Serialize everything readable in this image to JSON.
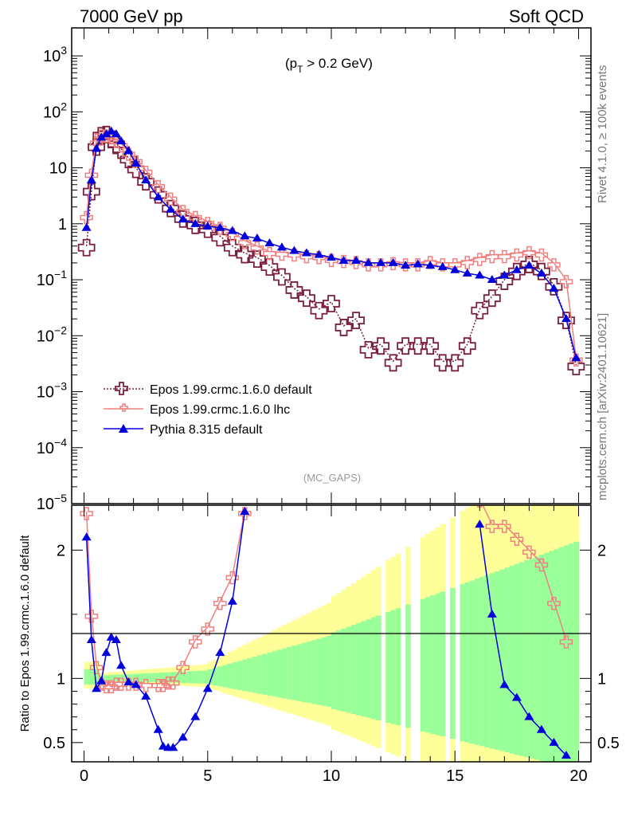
{
  "header": {
    "left": "7000 GeV pp",
    "right": "Soft QCD"
  },
  "side": {
    "rivet": "Rivet 4.1.0, ≥ 100k events",
    "mcplots": "mcplots.cern.ch [arXiv:2401.10621]"
  },
  "chart_data": {
    "type": "line",
    "cut_label": "(p_T > 0.2 GeV)",
    "watermark": "(MC_GAPS)",
    "ylabel_ratio": "Ratio to Epos 1.99.crmc.1.6.0 default",
    "xlim": [
      -0.5,
      20.5
    ],
    "ylim_main_log10": [
      -5,
      3.5
    ],
    "ylim_ratio": [
      0.35,
      2.35
    ],
    "x_ticks": [
      "0",
      "5",
      "10",
      "15",
      "20"
    ],
    "main_y_ticks": [
      "10^3",
      "10^2",
      "10",
      "1",
      "10^-1",
      "10^-2",
      "10^-3",
      "10^-4",
      "10^-5"
    ],
    "ratio_y_ticks": [
      "2",
      "1",
      "0.5"
    ],
    "colors": {
      "epos_default": "#7a1f3d",
      "epos_lhc": "#f08080",
      "pythia": "#0000dd",
      "band_inner": "#99ff99",
      "band_outer": "#ffff99"
    },
    "series": [
      {
        "name": "Epos 1.99.crmc.1.6.0 default",
        "color": "#7a1f3d",
        "marker": "open-cross",
        "style": "dotted",
        "x": [
          0.1,
          0.3,
          0.5,
          0.7,
          0.9,
          1.1,
          1.3,
          1.5,
          1.8,
          2.1,
          2.5,
          3.0,
          3.5,
          4.0,
          4.5,
          5.0,
          5.5,
          6.0,
          6.5,
          7.0,
          7.5,
          8.0,
          8.5,
          9.0,
          9.5,
          10.0,
          10.5,
          11.0,
          11.5,
          12.0,
          12.5,
          13.0,
          13.5,
          14.0,
          14.5,
          15.0,
          15.5,
          16.0,
          16.5,
          17.0,
          17.5,
          18.0,
          18.5,
          19.0,
          19.5,
          19.9
        ],
        "y": [
          0.4,
          4,
          25,
          40,
          42,
          35,
          28,
          22,
          15,
          10,
          6,
          3.5,
          2,
          1.3,
          1,
          0.85,
          0.6,
          0.4,
          0.3,
          0.25,
          0.18,
          0.12,
          0.07,
          0.05,
          0.03,
          0.04,
          0.015,
          0.02,
          0.006,
          0.007,
          0.0035,
          0.007,
          0.007,
          0.007,
          0.0035,
          0.0035,
          0.007,
          0.03,
          0.05,
          0.1,
          0.15,
          0.2,
          0.15,
          0.08,
          0.02,
          0.003
        ]
      },
      {
        "name": "Epos 1.99.crmc.1.6.0 lhc",
        "color": "#f08080",
        "marker": "cross",
        "style": "solid",
        "x": [
          0.1,
          0.3,
          0.5,
          0.7,
          0.9,
          1.1,
          1.3,
          1.5,
          1.8,
          2.1,
          2.5,
          3.0,
          3.5,
          4.0,
          4.5,
          5.0,
          5.5,
          6.0,
          6.5,
          7.0,
          7.5,
          8.0,
          8.5,
          9.0,
          9.5,
          10.0,
          10.5,
          11.0,
          11.5,
          12.0,
          12.5,
          13.0,
          13.5,
          14.0,
          14.5,
          15.0,
          15.5,
          16.0,
          16.5,
          17.0,
          17.5,
          18.0,
          18.5,
          19.0,
          19.5,
          19.9
        ],
        "y": [
          1.4,
          8,
          30,
          40,
          40,
          37,
          32,
          27,
          19,
          14,
          9,
          5,
          3,
          1.8,
          1.4,
          1.1,
          0.9,
          0.7,
          0.5,
          0.4,
          0.32,
          0.31,
          0.3,
          0.28,
          0.27,
          0.24,
          0.23,
          0.22,
          0.2,
          0.2,
          0.21,
          0.2,
          0.2,
          0.22,
          0.2,
          0.2,
          0.22,
          0.25,
          0.28,
          0.28,
          0.3,
          0.33,
          0.3,
          0.2,
          0.1,
          0.004
        ]
      },
      {
        "name": "Pythia 8.315 default",
        "color": "#0000dd",
        "marker": "triangle",
        "style": "solid",
        "x": [
          0.1,
          0.3,
          0.5,
          0.7,
          0.9,
          1.1,
          1.3,
          1.5,
          1.8,
          2.1,
          2.5,
          3.0,
          3.5,
          4.0,
          4.5,
          5.0,
          5.5,
          6.0,
          6.5,
          7.0,
          7.5,
          8.0,
          8.5,
          9.0,
          9.5,
          10.0,
          10.5,
          11.0,
          11.5,
          12.0,
          12.5,
          13.0,
          13.5,
          14.0,
          14.5,
          15.0,
          15.5,
          16.0,
          16.5,
          17.0,
          17.5,
          18.0,
          18.5,
          19.0,
          19.5,
          19.9
        ],
        "y": [
          0.85,
          6,
          22,
          35,
          40,
          45,
          40,
          30,
          20,
          12,
          6,
          3,
          1.8,
          1.2,
          1,
          0.9,
          0.85,
          0.75,
          0.6,
          0.55,
          0.45,
          0.38,
          0.33,
          0.3,
          0.28,
          0.25,
          0.22,
          0.22,
          0.2,
          0.2,
          0.2,
          0.18,
          0.19,
          0.18,
          0.17,
          0.15,
          0.13,
          0.12,
          0.1,
          0.12,
          0.15,
          0.18,
          0.13,
          0.07,
          0.02,
          0.004
        ]
      }
    ],
    "ratio": {
      "x": [
        0.1,
        0.3,
        0.5,
        0.7,
        0.9,
        1.1,
        1.3,
        1.5,
        1.8,
        2.1,
        2.5,
        3.0,
        3.2,
        3.4,
        3.6,
        4.0,
        4.5,
        5.0,
        5.5,
        6.0,
        6.5,
        16.0,
        16.5,
        17.0,
        17.5,
        18.0,
        18.5,
        19.0,
        19.5
      ],
      "lhc": [
        2.3,
        1.5,
        1.1,
        0.97,
        0.95,
        0.95,
        0.97,
        0.97,
        0.97,
        0.97,
        0.96,
        0.96,
        0.96,
        0.98,
        0.98,
        1.1,
        1.3,
        1.4,
        1.6,
        1.8,
        2.3,
        2.4,
        2.2,
        2.2,
        2.1,
        2.0,
        1.9,
        1.6,
        1.3
      ],
      "pythia": [
        2.1,
        1.3,
        0.92,
        0.98,
        1.2,
        1.32,
        1.3,
        1.1,
        0.97,
        0.95,
        0.86,
        0.6,
        0.47,
        0.46,
        0.46,
        0.54,
        0.7,
        0.92,
        1.2,
        1.6,
        2.3,
        2.2,
        1.5,
        0.95,
        0.85,
        0.7,
        0.6,
        0.5,
        0.4
      ]
    }
  },
  "legend": [
    {
      "label": "Epos 1.99.crmc.1.6.0 default"
    },
    {
      "label": "Epos 1.99.crmc.1.6.0 lhc"
    },
    {
      "label": "Pythia 8.315 default"
    }
  ]
}
